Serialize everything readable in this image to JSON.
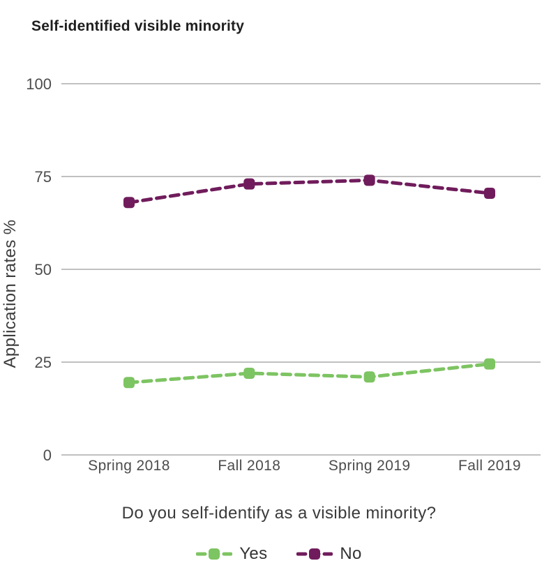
{
  "title": "Self-identified visible minority",
  "question": "Do you self-identify as a visible minority?",
  "chart_data": {
    "type": "line",
    "categories": [
      "Spring 2018",
      "Fall 2018",
      "Spring 2019",
      "Fall 2019"
    ],
    "series": [
      {
        "name": "Yes",
        "color": "#7dc462",
        "values": [
          19.5,
          22,
          21,
          24.5
        ]
      },
      {
        "name": "No",
        "color": "#701c5c",
        "values": [
          68,
          73,
          74,
          70.5
        ]
      }
    ],
    "ylabel": "Application rates %",
    "xlabel": "",
    "ylim": [
      0,
      100
    ],
    "yticks": [
      0,
      25,
      50,
      75,
      100
    ],
    "grid": true,
    "line_style": "dashed",
    "marker": "rounded-square",
    "legend_position": "bottom"
  },
  "colors": {
    "grid": "#9b9b9b",
    "tick_text": "#4c4c4c",
    "axis_label_text": "#3c3c3c"
  }
}
